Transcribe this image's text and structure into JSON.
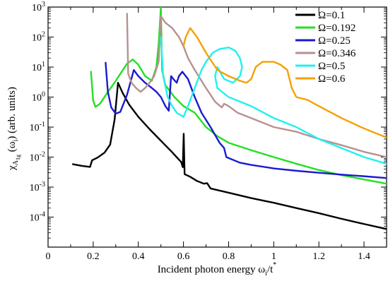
{
  "chart_data": {
    "type": "line",
    "xlabel": "Incident photon energy ω",
    "xlabel_sub": "i",
    "xlabel_suffix": "/t",
    "xlabel_sup": "*",
    "ylabel_parts": {
      "chi": "χ",
      "sub_a": "A",
      "sub_1g": "1g",
      "arg_open": "(ω",
      "arg_sub": "i",
      "arg_close": ")",
      "units": "(arb. units)"
    },
    "xlim": [
      0,
      1.5
    ],
    "ylim_log10": [
      -5,
      3
    ],
    "yscale": "log",
    "grid": false,
    "legend_position": "top-right",
    "x_ticks": [
      {
        "value": 0,
        "label": "0"
      },
      {
        "value": 0.2,
        "label": "0.2"
      },
      {
        "value": 0.4,
        "label": "0.4"
      },
      {
        "value": 0.6,
        "label": "0.6"
      },
      {
        "value": 0.8,
        "label": "0.8"
      },
      {
        "value": 1.0,
        "label": "1"
      },
      {
        "value": 1.2,
        "label": "1.2"
      },
      {
        "value": 1.4,
        "label": "1.4"
      }
    ],
    "y_ticks": [
      {
        "exp": -4,
        "base": "10",
        "sup": "-4"
      },
      {
        "exp": -3,
        "base": "10",
        "sup": "-3"
      },
      {
        "exp": -2,
        "base": "10",
        "sup": "-2"
      },
      {
        "exp": -1,
        "base": "10",
        "sup": "-1"
      },
      {
        "exp": 0,
        "base": "10",
        "sup": "0"
      },
      {
        "exp": 1,
        "base": "10",
        "sup": "1"
      },
      {
        "exp": 2,
        "base": "10",
        "sup": "2"
      },
      {
        "exp": 3,
        "base": "10",
        "sup": "3"
      }
    ],
    "series": [
      {
        "name": "Ω=0.1",
        "color": "#000000",
        "points": [
          [
            0.11,
            0.0058
          ],
          [
            0.15,
            0.0051
          ],
          [
            0.186,
            0.0047
          ],
          [
            0.195,
            0.0078
          ],
          [
            0.22,
            0.0097
          ],
          [
            0.25,
            0.014
          ],
          [
            0.275,
            0.026
          ],
          [
            0.295,
            0.18
          ],
          [
            0.31,
            3.0
          ],
          [
            0.33,
            1.4
          ],
          [
            0.36,
            0.55
          ],
          [
            0.4,
            0.22
          ],
          [
            0.45,
            0.085
          ],
          [
            0.5,
            0.035
          ],
          [
            0.55,
            0.0145
          ],
          [
            0.59,
            0.0068
          ],
          [
            0.597,
            0.0046
          ],
          [
            0.601,
            0.06
          ],
          [
            0.605,
            0.0027
          ],
          [
            0.63,
            0.0022
          ],
          [
            0.66,
            0.0016
          ],
          [
            0.69,
            0.0013
          ],
          [
            0.705,
            0.00135
          ],
          [
            0.72,
            0.0009
          ],
          [
            0.8,
            0.00065
          ],
          [
            0.9,
            0.00043
          ],
          [
            1.0,
            0.0003
          ],
          [
            1.1,
            0.0002
          ],
          [
            1.2,
            0.000135
          ],
          [
            1.3,
            8.8e-05
          ],
          [
            1.4,
            5.9e-05
          ],
          [
            1.5,
            4e-05
          ]
        ]
      },
      {
        "name": "Ω=0.192",
        "color": "#22e022",
        "points": [
          [
            0.19,
            7.0
          ],
          [
            0.2,
            0.75
          ],
          [
            0.21,
            0.47
          ],
          [
            0.23,
            0.6
          ],
          [
            0.26,
            1.3
          ],
          [
            0.3,
            3.5
          ],
          [
            0.35,
            13.0
          ],
          [
            0.375,
            18.0
          ],
          [
            0.4,
            12.0
          ],
          [
            0.43,
            5.0
          ],
          [
            0.46,
            3.5
          ],
          [
            0.48,
            10.0
          ],
          [
            0.49,
            60.0
          ],
          [
            0.5,
            1000.0
          ],
          [
            0.505,
            8.0
          ],
          [
            0.52,
            2.5
          ],
          [
            0.56,
            1.0
          ],
          [
            0.6,
            0.5
          ],
          [
            0.65,
            0.3
          ],
          [
            0.7,
            0.1
          ],
          [
            0.75,
            0.05
          ],
          [
            0.8,
            0.03
          ],
          [
            0.9,
            0.017
          ],
          [
            1.0,
            0.01
          ],
          [
            1.1,
            0.006
          ],
          [
            1.2,
            0.0037
          ],
          [
            1.3,
            0.0025
          ],
          [
            1.4,
            0.0018
          ],
          [
            1.5,
            0.0013
          ]
        ]
      },
      {
        "name": "Ω=0.25",
        "color": "#1a1ad0",
        "points": [
          [
            0.255,
            14.0
          ],
          [
            0.265,
            1.5
          ],
          [
            0.28,
            0.45
          ],
          [
            0.3,
            0.28
          ],
          [
            0.32,
            0.32
          ],
          [
            0.35,
            1.2
          ],
          [
            0.38,
            8.0
          ],
          [
            0.4,
            5.0
          ],
          [
            0.43,
            3.0
          ],
          [
            0.46,
            2.0
          ],
          [
            0.48,
            1.5
          ],
          [
            0.5,
            1.0
          ],
          [
            0.52,
            0.5
          ],
          [
            0.535,
            0.35
          ],
          [
            0.545,
            5.0
          ],
          [
            0.555,
            4.0
          ],
          [
            0.57,
            3.0
          ],
          [
            0.58,
            5.0
          ],
          [
            0.595,
            7.0
          ],
          [
            0.62,
            4.0
          ],
          [
            0.65,
            1.0
          ],
          [
            0.68,
            0.3
          ],
          [
            0.72,
            0.1
          ],
          [
            0.76,
            0.03
          ],
          [
            0.78,
            0.02
          ],
          [
            0.79,
            0.01
          ],
          [
            0.85,
            0.0065
          ],
          [
            0.9,
            0.0055
          ],
          [
            1.0,
            0.0042
          ],
          [
            1.1,
            0.0035
          ],
          [
            1.2,
            0.003
          ],
          [
            1.3,
            0.0026
          ],
          [
            1.4,
            0.0023
          ],
          [
            1.5,
            0.002
          ]
        ]
      },
      {
        "name": "Ω=0.346",
        "color": "#b89090",
        "points": [
          [
            0.35,
            600.0
          ],
          [
            0.355,
            6.0
          ],
          [
            0.37,
            3.0
          ],
          [
            0.39,
            2.0
          ],
          [
            0.41,
            1.5
          ],
          [
            0.43,
            2.0
          ],
          [
            0.45,
            3.0
          ],
          [
            0.47,
            5.0
          ],
          [
            0.49,
            15.0
          ],
          [
            0.5,
            500.0
          ],
          [
            0.52,
            300.0
          ],
          [
            0.55,
            200.0
          ],
          [
            0.58,
            100.0
          ],
          [
            0.6,
            50.0
          ],
          [
            0.62,
            20.0
          ],
          [
            0.65,
            8.0
          ],
          [
            0.7,
            2.0
          ],
          [
            0.74,
            0.7
          ],
          [
            0.77,
            0.45
          ],
          [
            0.78,
            0.6
          ],
          [
            0.8,
            0.5
          ],
          [
            0.84,
            0.3
          ],
          [
            0.9,
            0.2
          ],
          [
            1.0,
            0.1
          ],
          [
            1.1,
            0.07
          ],
          [
            1.2,
            0.04
          ],
          [
            1.3,
            0.025
          ],
          [
            1.4,
            0.015
          ],
          [
            1.5,
            0.01
          ]
        ]
      },
      {
        "name": "Ω=0.5",
        "color": "#22f0f0",
        "points": [
          [
            0.5,
            100.0
          ],
          [
            0.51,
            5.0
          ],
          [
            0.53,
            1.0
          ],
          [
            0.55,
            0.5
          ],
          [
            0.57,
            0.3
          ],
          [
            0.6,
            0.22
          ],
          [
            0.62,
            0.5
          ],
          [
            0.65,
            2.0
          ],
          [
            0.68,
            8.0
          ],
          [
            0.7,
            15.0
          ],
          [
            0.73,
            30.0
          ],
          [
            0.76,
            40.0
          ],
          [
            0.8,
            45.0
          ],
          [
            0.83,
            35.0
          ],
          [
            0.85,
            20.0
          ],
          [
            0.86,
            10.0
          ],
          [
            0.85,
            5.0
          ],
          [
            0.82,
            3.0
          ],
          [
            0.78,
            4.0
          ],
          [
            0.75,
            10.0
          ],
          [
            0.74,
            5.0
          ],
          [
            0.75,
            2.0
          ],
          [
            0.8,
            1.0
          ],
          [
            0.9,
            0.5
          ],
          [
            1.0,
            0.2
          ],
          [
            1.1,
            0.1
          ],
          [
            1.2,
            0.04
          ],
          [
            1.3,
            0.02
          ],
          [
            1.4,
            0.01
          ],
          [
            1.5,
            0.006
          ]
        ]
      },
      {
        "name": "Ω=0.6",
        "color": "#f5a000",
        "points": [
          [
            0.6,
            50.0
          ],
          [
            0.61,
            100.0
          ],
          [
            0.63,
            200.0
          ],
          [
            0.66,
            100.0
          ],
          [
            0.7,
            30.0
          ],
          [
            0.75,
            8.0
          ],
          [
            0.8,
            5.0
          ],
          [
            0.85,
            3.5
          ],
          [
            0.88,
            3.0
          ],
          [
            0.9,
            4.0
          ],
          [
            0.92,
            10.0
          ],
          [
            0.95,
            15.0
          ],
          [
            1.0,
            15.0
          ],
          [
            1.03,
            12.0
          ],
          [
            1.06,
            8.0
          ],
          [
            1.08,
            2.0
          ],
          [
            1.1,
            1.0
          ],
          [
            1.15,
            0.8
          ],
          [
            1.2,
            0.5
          ],
          [
            1.3,
            0.2
          ],
          [
            1.4,
            0.09
          ],
          [
            1.5,
            0.045
          ]
        ]
      }
    ]
  }
}
